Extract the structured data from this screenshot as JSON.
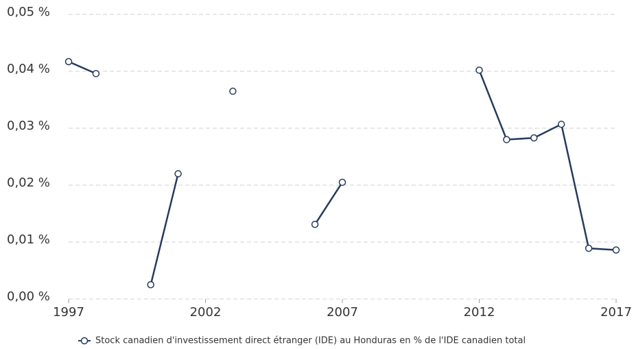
{
  "chart_data": {
    "type": "line",
    "x": [
      1997,
      1998,
      1999,
      2000,
      2001,
      2002,
      2003,
      2004,
      2005,
      2006,
      2007,
      2008,
      2009,
      2010,
      2011,
      2012,
      2013,
      2014,
      2015,
      2016,
      2017
    ],
    "series": [
      {
        "name": "Stock canadien d'investissement direct étranger (IDE) au Honduras en % de l'IDE canadien total",
        "color": "#253b5a",
        "values": [
          0.0417,
          0.0396,
          null,
          0.0025,
          0.022,
          null,
          0.0365,
          null,
          null,
          0.0131,
          0.0205,
          null,
          null,
          null,
          null,
          0.0402,
          0.028,
          0.0283,
          0.0307,
          0.0089,
          0.0086
        ]
      }
    ],
    "xlim": [
      1997,
      2017
    ],
    "xticks": [
      1997,
      2002,
      2007,
      2012,
      2017
    ],
    "ylim": [
      0,
      0.05
    ],
    "yticks": [
      {
        "value": 0,
        "label": "0,00 %"
      },
      {
        "value": 0.01,
        "label": "0,01 %"
      },
      {
        "value": 0.02,
        "label": "0,02 %"
      },
      {
        "value": 0.03,
        "label": "0,03 %"
      },
      {
        "value": 0.04,
        "label": "0,04 %"
      },
      {
        "value": 0.05,
        "label": "0,05 %"
      }
    ],
    "grid": true,
    "legend": "bottom"
  }
}
